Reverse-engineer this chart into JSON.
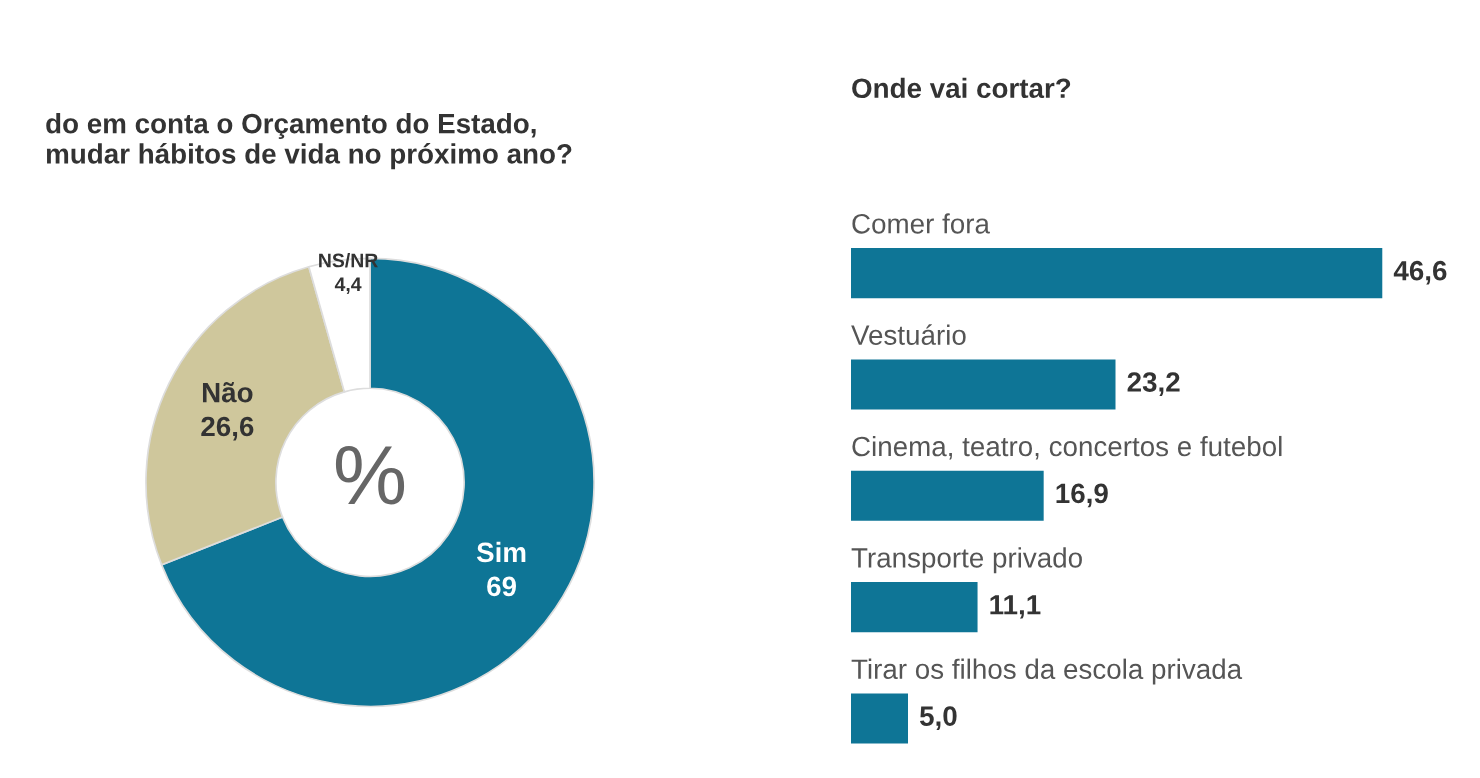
{
  "chart_data": [
    {
      "type": "donut",
      "title": "do em conta o Orçamento do Estado,\nmudar hábitos de vida no próximo ano?",
      "categories": [
        "Sim",
        "Não",
        "NS/NR"
      ],
      "values": [
        69,
        26.6,
        4.4
      ],
      "value_labels": [
        "69",
        "26,6",
        "4,4"
      ],
      "colors": [
        "#0e7596",
        "#cfc79c",
        "#ffffff"
      ],
      "annotations": [
        "%"
      ]
    },
    {
      "type": "bar",
      "orientation": "horizontal",
      "title": "Onde vai cortar?",
      "categories": [
        "Comer fora",
        "Vestuário",
        "Cinema, teatro, concertos e futebol",
        "Transporte privado",
        "Tirar os filhos da escola privada"
      ],
      "values": [
        46.6,
        23.2,
        16.9,
        11.1,
        5.0
      ],
      "value_labels": [
        "46,6",
        "23,2",
        "16,9",
        "11,1",
        "5,0"
      ],
      "color": "#0e7596"
    }
  ]
}
